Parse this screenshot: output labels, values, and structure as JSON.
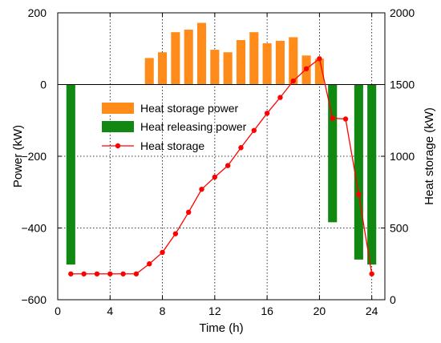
{
  "chart_data": {
    "type": "bar",
    "x": [
      1,
      2,
      3,
      4,
      5,
      6,
      7,
      8,
      9,
      10,
      11,
      12,
      13,
      14,
      15,
      16,
      17,
      18,
      19,
      20,
      21,
      22,
      23,
      24
    ],
    "xlabel": "Time (h)",
    "ylabel": "Power (kW)",
    "y2label": "Heat storage (kW)",
    "xlim": [
      0,
      25
    ],
    "ylim": [
      -600,
      200
    ],
    "y2lim": [
      0,
      2000
    ],
    "xticks": [
      "0",
      "4",
      "8",
      "12",
      "16",
      "20",
      "24"
    ],
    "yticks": [
      "200",
      "0",
      "−200",
      "−400",
      "−600"
    ],
    "y2ticks": [
      "2000",
      "1500",
      "1000",
      "500",
      "0"
    ],
    "grid": true,
    "legend_position": "upper-left-center",
    "series": [
      {
        "name": "Heat storage power",
        "type": "bar",
        "axis": "left",
        "color": "#ff8c1a",
        "values": [
          0,
          0,
          0,
          0,
          0,
          0,
          74,
          90,
          146,
          153,
          172,
          97,
          90,
          124,
          146,
          115,
          122,
          132,
          81,
          72,
          0,
          0,
          0,
          0
        ]
      },
      {
        "name": "Heat releasing power",
        "type": "bar",
        "axis": "left",
        "color": "#118811",
        "values": [
          -502,
          0,
          0,
          0,
          0,
          0,
          0,
          0,
          0,
          0,
          0,
          0,
          0,
          0,
          0,
          0,
          0,
          0,
          0,
          0,
          -384,
          0,
          -488,
          -502
        ]
      },
      {
        "name": "Heat storage",
        "type": "line",
        "axis": "right",
        "color": "#ff0000",
        "marker": "circle",
        "values": [
          180,
          180,
          180,
          180,
          180,
          180,
          250,
          330,
          460,
          610,
          770,
          855,
          935,
          1060,
          1180,
          1300,
          1410,
          1525,
          1610,
          1680,
          1265,
          1260,
          735,
          180
        ]
      }
    ]
  }
}
